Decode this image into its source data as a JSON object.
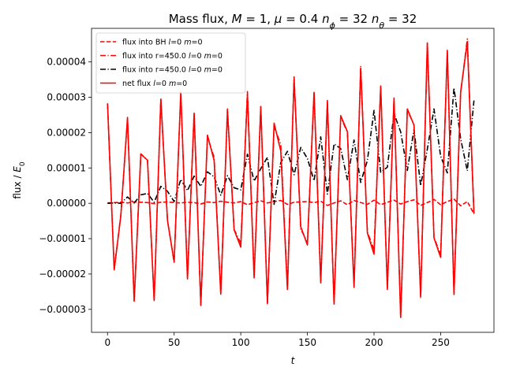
{
  "chart_data": {
    "type": "line",
    "title_parts": [
      {
        "t": "Mass flux, ",
        "i": false
      },
      {
        "t": "M",
        "i": true
      },
      {
        "t": " = 1, ",
        "i": false
      },
      {
        "t": "μ",
        "i": true
      },
      {
        "t": " = 0.4 ",
        "i": false
      },
      {
        "t": "n",
        "i": true
      },
      {
        "t": "ϕ",
        "i": true,
        "sub": true
      },
      {
        "t": " = 32 ",
        "i": false
      },
      {
        "t": "n",
        "i": true
      },
      {
        "t": "θ",
        "i": true,
        "sub": true
      },
      {
        "t": " = 32",
        "i": false
      }
    ],
    "xlabel": "t",
    "ylabel_parts": [
      {
        "t": "flux / ",
        "i": false
      },
      {
        "t": "E",
        "i": true
      },
      {
        "t": "0",
        "i": false,
        "sub": true
      }
    ],
    "xlim": [
      -12,
      290
    ],
    "ylim": [
      -3.65e-05,
      4.95e-05
    ],
    "xticks": [
      0,
      50,
      100,
      150,
      200,
      250
    ],
    "yticks": [
      -3e-05,
      -2e-05,
      -1e-05,
      0,
      1e-05,
      2e-05,
      3e-05,
      4e-05
    ],
    "ytick_labels": [
      "−0.00003",
      "−0.00002",
      "−0.00001",
      "0.00000",
      "0.00001",
      "0.00002",
      "0.00003",
      "0.00004"
    ],
    "grid": false,
    "legend_placement": "top-left",
    "x": [
      0,
      5,
      10,
      15,
      20,
      25,
      30,
      35,
      40,
      45,
      50,
      55,
      60,
      65,
      70,
      75,
      80,
      85,
      90,
      95,
      100,
      105,
      110,
      115,
      120,
      125,
      130,
      135,
      140,
      145,
      150,
      155,
      160,
      165,
      170,
      175,
      180,
      185,
      190,
      195,
      200,
      205,
      210,
      215,
      220,
      225,
      230,
      235,
      240,
      245,
      250,
      255,
      260,
      265,
      270,
      275
    ],
    "series": [
      {
        "name": "flux into BH l=0 m=0",
        "color": "#ff0000",
        "dash": "dashed",
        "values": [
          1e-07,
          2e-07,
          3e-07,
          1e-07,
          4e-07,
          3e-07,
          2e-07,
          -1e-07,
          3e-07,
          4e-07,
          2e-07,
          1e-07,
          3e-07,
          2e-07,
          -2e-07,
          4e-07,
          2e-07,
          6e-07,
          3e-07,
          1e-07,
          5e-07,
          -4e-07,
          2e-07,
          7e-07,
          1e-07,
          5e-07,
          8e-07,
          -3e-07,
          3e-07,
          4e-07,
          5e-07,
          2e-07,
          6e-07,
          -6e-07,
          1e-07,
          7e-07,
          -4e-07,
          8e-07,
          2e-07,
          -3e-07,
          9e-07,
          -4e-07,
          3e-07,
          9e-07,
          -2e-07,
          5e-07,
          1e-06,
          -6e-07,
          2e-07,
          1.1e-06,
          -4e-07,
          5e-07,
          1.2e-06,
          -7e-07,
          5e-07,
          -3e-06
        ]
      },
      {
        "name": "flux into r=450.0 l=0 m=0",
        "color": "#ff0000",
        "dash": "dashdot",
        "values": [
          2.81e-05,
          -1.88e-05,
          -3.2e-06,
          2.38e-05,
          -2.76e-05,
          1.4e-05,
          1.22e-05,
          -2.75e-05,
          2.96e-05,
          -4.8e-06,
          -1.67e-05,
          3.12e-05,
          -2.12e-05,
          2.56e-05,
          -2.87e-05,
          1.88e-05,
          1.3e-05,
          -2.55e-05,
          2.67e-05,
          -7.4e-06,
          -1.13e-05,
          3.16e-05,
          -2.08e-05,
          2.73e-05,
          -2.81e-05,
          2.17e-05,
          1.67e-05,
          -2.4e-05,
          3.58e-05,
          -7.3e-06,
          -1.1e-05,
          3.15e-05,
          -2.22e-05,
          2.83e-05,
          -2.84e-05,
          2.44e-05,
          2.01e-05,
          -2.32e-05,
          3.87e-05,
          -8.1e-06,
          -1.31e-05,
          3.29e-05,
          -2.41e-05,
          2.92e-05,
          -3.22e-05,
          2.64e-05,
          2.22e-05,
          -2.63e-05,
          4.53e-05,
          -9.7e-06,
          -1.45e-05,
          4.29e-05,
          -2.56e-05,
          3.12e-05,
          4.65e-05,
          -3e-06
        ]
      },
      {
        "name": "flux into r=450.0 l=0 m=0",
        "color": "#000000",
        "dash": "dashdot",
        "values": [
          0.0,
          1e-07,
          0.0,
          1.8e-06,
          1e-07,
          2.4e-06,
          2.8e-06,
          3e-07,
          4.8e-06,
          3.4e-06,
          5e-07,
          6.8e-06,
          3.6e-06,
          7.7e-06,
          4.8e-06,
          8.9e-06,
          7.5e-06,
          2.3e-06,
          7.8e-06,
          4.4e-06,
          3.8e-06,
          1.39e-05,
          6.3e-06,
          9.8e-06,
          1.3e-05,
          -3e-07,
          1.15e-05,
          1.47e-05,
          8.1e-06,
          1.58e-05,
          1.27e-05,
          6.4e-06,
          1.88e-05,
          2.6e-06,
          1.68e-05,
          1.55e-05,
          6.7e-06,
          1.79e-05,
          5.9e-06,
          1.21e-05,
          2.63e-05,
          8.8e-06,
          1.02e-05,
          2.54e-05,
          2.02e-05,
          9.3e-06,
          2.09e-05,
          5e-06,
          1.53e-05,
          2.67e-05,
          1.33e-05,
          8.6e-06,
          3.27e-05,
          1.83e-05,
          9.2e-06,
          2.91e-05
        ]
      },
      {
        "name": "net flux l=0 m=0",
        "color": "#ff0000",
        "dash": "solid",
        "values": [
          2.83e-05,
          -1.88e-05,
          -3.5e-06,
          2.43e-05,
          -2.77e-05,
          1.39e-05,
          1.22e-05,
          -2.75e-05,
          2.95e-05,
          -4.9e-06,
          -1.66e-05,
          3.16e-05,
          -2.14e-05,
          2.55e-05,
          -2.89e-05,
          1.93e-05,
          1.21e-05,
          -2.57e-05,
          2.62e-05,
          -7.5e-06,
          -1.24e-05,
          3.09e-05,
          -2.11e-05,
          2.74e-05,
          -2.84e-05,
          2.27e-05,
          1.48e-05,
          -2.44e-05,
          3.54e-05,
          -6.6e-06,
          -1.18e-05,
          3.14e-05,
          -2.25e-05,
          2.91e-05,
          -2.85e-05,
          2.48e-05,
          2.03e-05,
          -2.38e-05,
          3.83e-05,
          -8.4e-06,
          -1.44e-05,
          3.32e-05,
          -2.44e-05,
          2.98e-05,
          -3.23e-05,
          2.67e-05,
          2.21e-05,
          -2.66e-05,
          4.54e-05,
          -9.8e-06,
          -1.53e-05,
          4.33e-05,
          -2.58e-05,
          3.15e-05,
          4.57e-05,
          -2.9e-06
        ]
      }
    ],
    "legend": [
      {
        "label_parts": [
          {
            "t": "flux into BH ",
            "i": false
          },
          {
            "t": "l",
            "i": true
          },
          {
            "t": "=0 ",
            "i": false
          },
          {
            "t": "m",
            "i": true
          },
          {
            "t": "=0",
            "i": false
          }
        ]
      },
      {
        "label_parts": [
          {
            "t": "flux into r=450.0 ",
            "i": false
          },
          {
            "t": "l",
            "i": true
          },
          {
            "t": "=0 ",
            "i": false
          },
          {
            "t": "m",
            "i": true
          },
          {
            "t": "=0",
            "i": false
          }
        ]
      },
      {
        "label_parts": [
          {
            "t": "flux into r=450.0 ",
            "i": false
          },
          {
            "t": "l",
            "i": true
          },
          {
            "t": "=0 ",
            "i": false
          },
          {
            "t": "m",
            "i": true
          },
          {
            "t": "=0",
            "i": false
          }
        ]
      },
      {
        "label_parts": [
          {
            "t": "net flux ",
            "i": false
          },
          {
            "t": "l",
            "i": true
          },
          {
            "t": "=0 ",
            "i": false
          },
          {
            "t": "m",
            "i": true
          },
          {
            "t": "=0",
            "i": false
          }
        ]
      }
    ]
  }
}
